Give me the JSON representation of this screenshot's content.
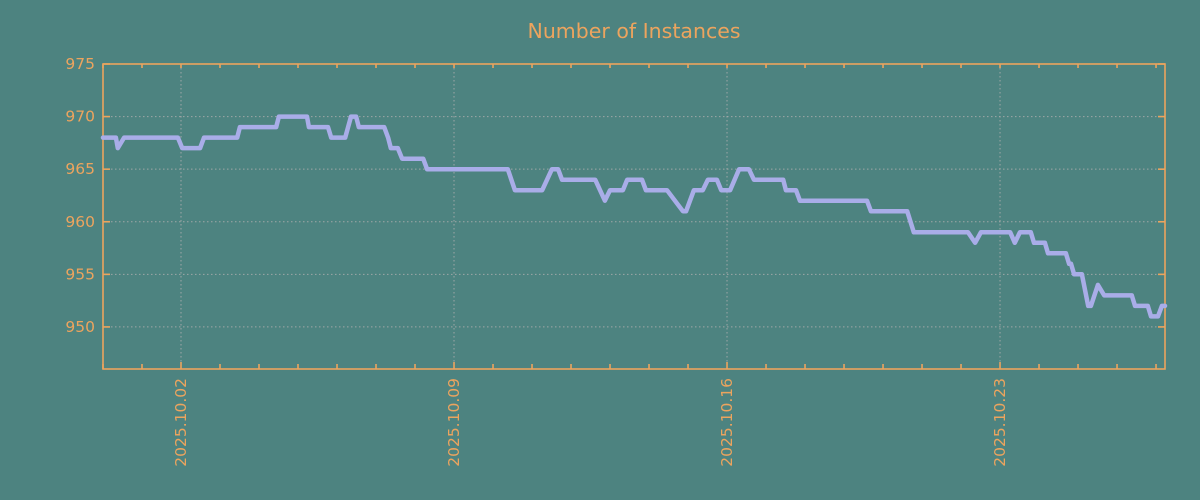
{
  "title": "Number of Instances",
  "colors": {
    "background": "#4d8380",
    "accent_orange": "#eca45e",
    "series_line": "#a9ade8",
    "gridline": "#aeaeae"
  },
  "chart_data": {
    "type": "line",
    "title": "Number of Instances",
    "xlabel": "",
    "ylabel": "",
    "legend": "none",
    "grid": "dotted (weekly vertical, every-5 horizontal)",
    "x_unit": "days; 1 minor tick = 1 day; labeled major ticks weekly",
    "xlim": [
      0,
      27.23
    ],
    "ylim": [
      946,
      975
    ],
    "y_ticks": [
      950,
      955,
      960,
      965,
      970,
      975
    ],
    "y_gridlines": [
      950,
      955,
      960,
      965,
      970
    ],
    "x_ticks": [
      {
        "t": 2,
        "label": "2025.10.02"
      },
      {
        "t": 9,
        "label": "2025.10.09"
      },
      {
        "t": 16,
        "label": "2025.10.16"
      },
      {
        "t": 23,
        "label": "2025.10.23"
      }
    ],
    "x_minor_step": 1,
    "series": [
      {
        "name": "instances",
        "color": "#a9ade8",
        "points": [
          [
            0.0,
            968
          ],
          [
            0.33,
            968
          ],
          [
            0.38,
            967
          ],
          [
            0.54,
            968
          ],
          [
            1.92,
            968
          ],
          [
            2.03,
            967
          ],
          [
            2.49,
            967
          ],
          [
            2.59,
            968
          ],
          [
            3.44,
            968
          ],
          [
            3.51,
            969
          ],
          [
            4.44,
            969
          ],
          [
            4.51,
            970
          ],
          [
            5.23,
            970
          ],
          [
            5.28,
            969
          ],
          [
            5.77,
            969
          ],
          [
            5.85,
            968
          ],
          [
            6.21,
            968
          ],
          [
            6.36,
            970
          ],
          [
            6.49,
            970
          ],
          [
            6.56,
            969
          ],
          [
            7.21,
            969
          ],
          [
            7.31,
            968
          ],
          [
            7.38,
            967
          ],
          [
            7.56,
            967
          ],
          [
            7.67,
            966
          ],
          [
            8.21,
            966
          ],
          [
            8.31,
            965
          ],
          [
            10.38,
            965
          ],
          [
            10.56,
            963
          ],
          [
            11.26,
            963
          ],
          [
            11.51,
            965
          ],
          [
            11.67,
            965
          ],
          [
            11.77,
            964
          ],
          [
            12.62,
            964
          ],
          [
            12.87,
            962
          ],
          [
            13.0,
            963
          ],
          [
            13.33,
            963
          ],
          [
            13.44,
            964
          ],
          [
            13.82,
            964
          ],
          [
            13.92,
            963
          ],
          [
            14.46,
            963
          ],
          [
            14.87,
            961
          ],
          [
            14.95,
            961
          ],
          [
            15.15,
            963
          ],
          [
            15.38,
            963
          ],
          [
            15.51,
            964
          ],
          [
            15.74,
            964
          ],
          [
            15.85,
            963
          ],
          [
            16.08,
            963
          ],
          [
            16.31,
            965
          ],
          [
            16.56,
            965
          ],
          [
            16.69,
            964
          ],
          [
            17.44,
            964
          ],
          [
            17.51,
            963
          ],
          [
            17.77,
            963
          ],
          [
            17.87,
            962
          ],
          [
            19.59,
            962
          ],
          [
            19.69,
            961
          ],
          [
            20.62,
            961
          ],
          [
            20.79,
            959
          ],
          [
            22.18,
            959
          ],
          [
            22.36,
            958
          ],
          [
            22.51,
            959
          ],
          [
            23.26,
            959
          ],
          [
            23.38,
            958
          ],
          [
            23.51,
            959
          ],
          [
            23.79,
            959
          ],
          [
            23.87,
            958
          ],
          [
            24.15,
            958
          ],
          [
            24.23,
            957
          ],
          [
            24.69,
            957
          ],
          [
            24.77,
            956
          ],
          [
            24.82,
            956
          ],
          [
            24.9,
            955
          ],
          [
            25.1,
            955
          ],
          [
            25.26,
            952
          ],
          [
            25.33,
            952
          ],
          [
            25.51,
            954
          ],
          [
            25.67,
            953
          ],
          [
            26.38,
            953
          ],
          [
            26.46,
            952
          ],
          [
            26.79,
            952
          ],
          [
            26.87,
            951
          ],
          [
            27.05,
            951
          ],
          [
            27.15,
            952
          ],
          [
            27.23,
            952
          ]
        ]
      }
    ]
  }
}
